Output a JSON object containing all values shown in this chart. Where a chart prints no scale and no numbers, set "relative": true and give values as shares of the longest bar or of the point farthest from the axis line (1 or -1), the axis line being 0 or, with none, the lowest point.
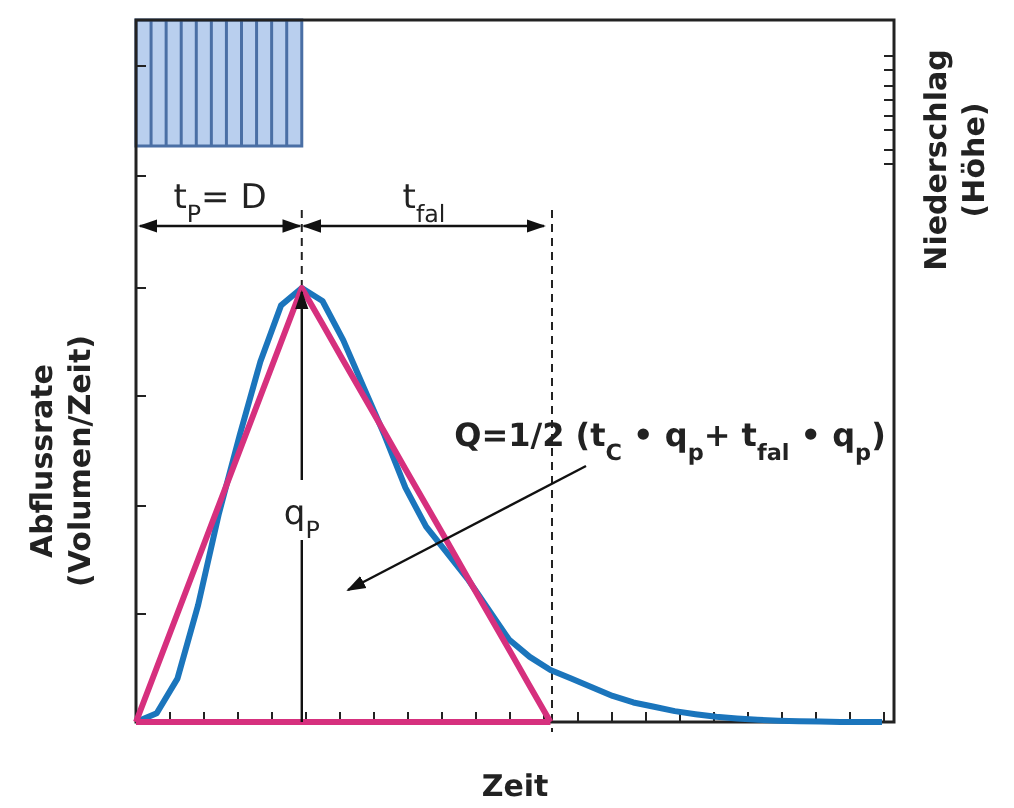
{
  "chart_data": {
    "type": "line",
    "relative": true,
    "xlabel": "Zeit",
    "ylabel": "Abflussrate\n(Volumen/Zeit)",
    "y2label": "Niederschlag\n(Höhe)",
    "categories": [
      null,
      null,
      null,
      null,
      null,
      null,
      null,
      null,
      null,
      null,
      null,
      null,
      null,
      null,
      null,
      null,
      null,
      null,
      null,
      null,
      null,
      null,
      null,
      null,
      null,
      null,
      null,
      null,
      null,
      null,
      null,
      null,
      null,
      null,
      null,
      null,
      null
    ],
    "series": [
      {
        "color": "#1b75bc",
        "values": [
          0,
          0.02,
          0.1,
          0.27,
          0.48,
          0.66,
          0.83,
          0.96,
          1,
          0.97,
          0.88,
          0.77,
          0.66,
          0.54,
          0.45,
          0.39,
          0.33,
          0.26,
          0.19,
          0.15,
          0.12,
          0.1,
          0.08,
          0.06,
          0.045,
          0.035,
          0.025,
          0.018,
          0.012,
          0.008,
          0.005,
          0.003,
          0.002,
          0.001,
          0,
          0,
          0
        ]
      },
      {
        "color": "#d6307e",
        "values": [
          0,
          0.125,
          0.25,
          0.375,
          0.5,
          0.625,
          0.75,
          0.875,
          1,
          0.917,
          0.833,
          0.75,
          0.667,
          0.583,
          0.5,
          0.417,
          0.333,
          0.25,
          0.167,
          0.083,
          0,
          null,
          null,
          null,
          null,
          null,
          null,
          null,
          null,
          null,
          null,
          null,
          null,
          null,
          null,
          null,
          null
        ]
      },
      {
        "color": "#d6307e",
        "values": [
          0,
          0,
          0,
          0,
          0,
          0,
          0,
          0,
          0,
          0,
          0,
          0,
          0,
          0,
          0,
          0,
          0,
          0,
          0,
          0,
          0,
          null,
          null,
          null,
          null,
          null,
          null,
          null,
          null,
          null,
          null,
          null,
          null,
          null,
          null,
          null,
          null
        ]
      }
    ],
    "annotations": [
      "t$_{P}$= D",
      "t$_{fal}$",
      "q$_{P}$",
      "Q=1/2 (t$_{C}$ • q$_{p}$+ t$_{fal}$ • q$_{p}$)"
    ],
    "marker": "none",
    "line_style": "solid",
    "grid": false
  }
}
